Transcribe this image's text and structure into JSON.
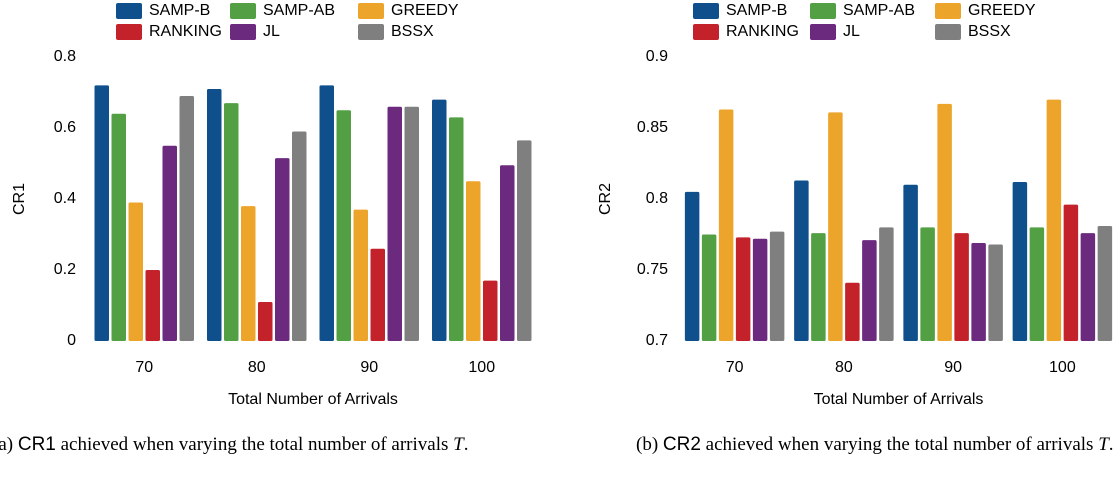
{
  "chart_data": [
    {
      "type": "bar",
      "ylabel": "CR1",
      "xlabel": "Total Number of Arrivals",
      "categories": [
        "70",
        "80",
        "90",
        "100"
      ],
      "series": [
        {
          "name": "SAMP-B",
          "color": "#0f4f8c",
          "values": [
            0.72,
            0.71,
            0.72,
            0.68
          ]
        },
        {
          "name": "SAMP-AB",
          "color": "#52a043",
          "values": [
            0.64,
            0.67,
            0.65,
            0.63
          ]
        },
        {
          "name": "GREEDY",
          "color": "#eda42a",
          "values": [
            0.39,
            0.38,
            0.37,
            0.45
          ]
        },
        {
          "name": "RANKING",
          "color": "#c4222b",
          "values": [
            0.2,
            0.11,
            0.26,
            0.17
          ]
        },
        {
          "name": "JL",
          "color": "#6c2a7f",
          "values": [
            0.55,
            0.515,
            0.66,
            0.495
          ]
        },
        {
          "name": "BSSX",
          "color": "#7f7f7f",
          "values": [
            0.69,
            0.59,
            0.66,
            0.565
          ]
        }
      ],
      "ylim": [
        0,
        0.8
      ],
      "yticks": [
        0,
        0.2,
        0.4,
        0.6,
        0.8
      ]
    },
    {
      "type": "bar",
      "ylabel": "CR2",
      "xlabel": "Total Number of Arrivals",
      "categories": [
        "70",
        "80",
        "90",
        "100"
      ],
      "series": [
        {
          "name": "SAMP-B",
          "color": "#0f4f8c",
          "values": [
            0.805,
            0.813,
            0.81,
            0.812
          ]
        },
        {
          "name": "SAMP-AB",
          "color": "#52a043",
          "values": [
            0.775,
            0.776,
            0.78,
            0.78
          ]
        },
        {
          "name": "GREEDY",
          "color": "#eda42a",
          "values": [
            0.863,
            0.861,
            0.867,
            0.87
          ]
        },
        {
          "name": "RANKING",
          "color": "#c4222b",
          "values": [
            0.773,
            0.741,
            0.776,
            0.796
          ]
        },
        {
          "name": "JL",
          "color": "#6c2a7f",
          "values": [
            0.772,
            0.771,
            0.769,
            0.776
          ]
        },
        {
          "name": "BSSX",
          "color": "#7f7f7f",
          "values": [
            0.777,
            0.78,
            0.768,
            0.781
          ]
        }
      ],
      "ylim": [
        0.7,
        0.9
      ],
      "yticks": [
        0.7,
        0.75,
        0.8,
        0.85,
        0.9
      ]
    }
  ],
  "captions": [
    [
      "(a) ",
      "CR1",
      " achieved when varying the total number of arrivals ",
      "T",
      "."
    ],
    [
      "(b) ",
      "CR2",
      " achieved when varying the total number of arrivals ",
      "T",
      "."
    ]
  ]
}
